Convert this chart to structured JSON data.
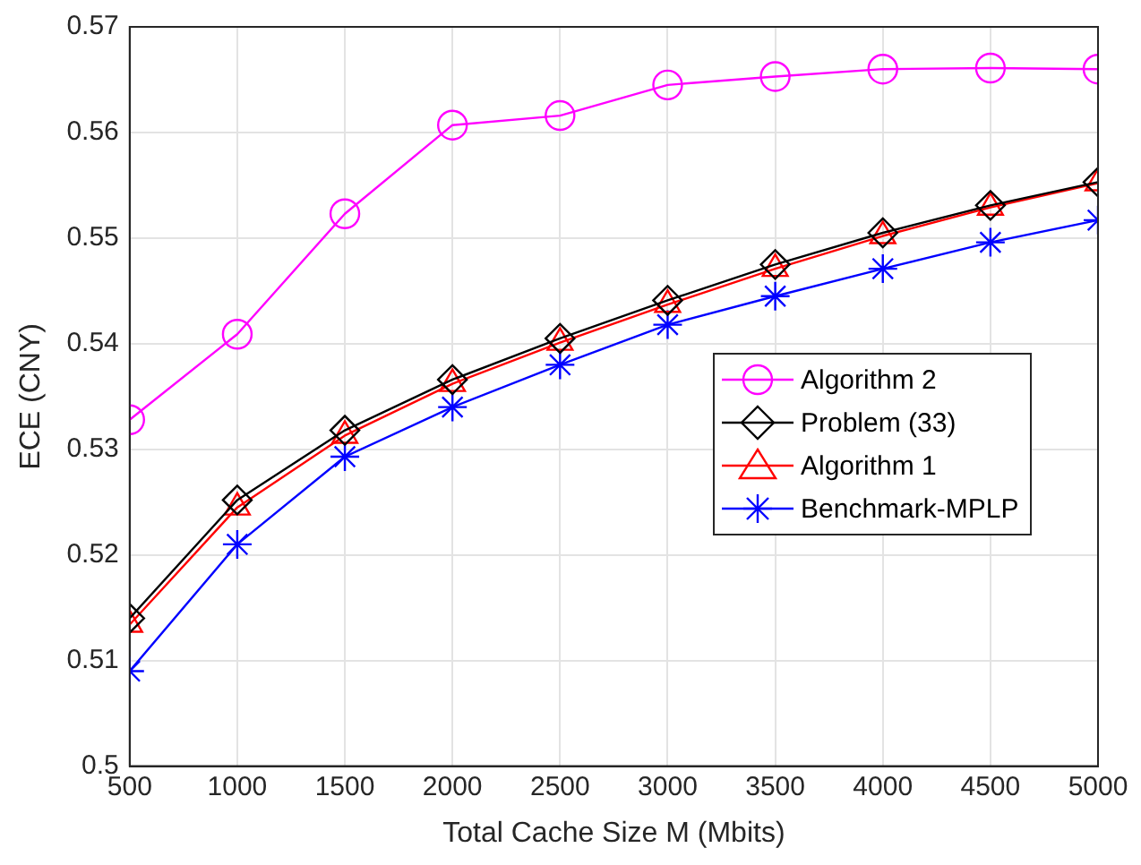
{
  "chart_data": {
    "type": "line",
    "xlabel": "Total Cache Size M (Mbits)",
    "ylabel": "ECE (CNY)",
    "x": [
      500,
      1000,
      1500,
      2000,
      2500,
      3000,
      3500,
      4000,
      4500,
      5000
    ],
    "series": [
      {
        "name": "Algorithm 2",
        "color": "#ff00ff",
        "marker": "circle",
        "values": [
          0.5328,
          0.5409,
          0.5523,
          0.5607,
          0.5616,
          0.5645,
          0.5653,
          0.566,
          0.5661,
          0.566
        ]
      },
      {
        "name": "Problem (33)",
        "color": "#000000",
        "marker": "diamond",
        "values": [
          0.514,
          0.5252,
          0.5318,
          0.5366,
          0.5405,
          0.5441,
          0.5475,
          0.5505,
          0.5531,
          0.5553
        ]
      },
      {
        "name": "Algorithm 1",
        "color": "#ff0000",
        "marker": "triangle",
        "values": [
          0.5134,
          0.5245,
          0.5313,
          0.5362,
          0.5401,
          0.5437,
          0.5471,
          0.5502,
          0.5529,
          0.5552
        ]
      },
      {
        "name": "Benchmark-MPLP",
        "color": "#0000ff",
        "marker": "cross",
        "values": [
          0.509,
          0.521,
          0.5293,
          0.534,
          0.538,
          0.5418,
          0.5445,
          0.5471,
          0.5496,
          0.5517
        ]
      }
    ],
    "xlim": [
      500,
      5000
    ],
    "xticks": [
      500,
      1000,
      1500,
      2000,
      2500,
      3000,
      3500,
      4000,
      4500,
      5000
    ],
    "ylim": [
      0.5,
      0.57
    ],
    "yticks": [
      0.5,
      0.51,
      0.52,
      0.53,
      0.54,
      0.55,
      0.56,
      0.57
    ],
    "grid": true,
    "legend": "right",
    "line_style": "solid"
  }
}
